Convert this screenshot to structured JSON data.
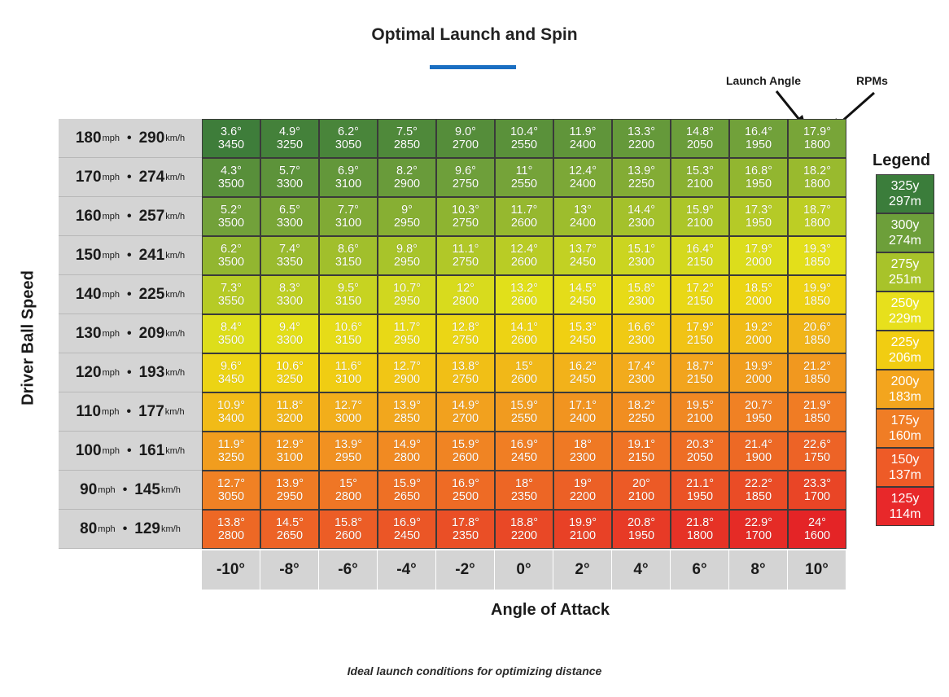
{
  "title": "Optimal Launch and Spin",
  "caption": "Ideal launch conditions for optimizing distance",
  "annotations": {
    "launch_angle": "Launch Angle",
    "rpms": "RPMs"
  },
  "legend": {
    "title": "Legend",
    "items": [
      {
        "yards": "325y",
        "meters": "297m",
        "color": "#3b7d3b"
      },
      {
        "yards": "300y",
        "meters": "274m",
        "color": "#6d9f3a"
      },
      {
        "yards": "275y",
        "meters": "251m",
        "color": "#a8c32a"
      },
      {
        "yards": "250y",
        "meters": "229m",
        "color": "#e7e01c"
      },
      {
        "yards": "225y",
        "meters": "206m",
        "color": "#f1cd12"
      },
      {
        "yards": "200y",
        "meters": "183m",
        "color": "#f3a51e"
      },
      {
        "yards": "175y",
        "meters": "160m",
        "color": "#f07d25"
      },
      {
        "yards": "150y",
        "meters": "137m",
        "color": "#ee5b27"
      },
      {
        "yards": "125y",
        "meters": "114m",
        "color": "#e8282a"
      }
    ]
  },
  "chart_data": {
    "type": "heatmap",
    "title": "Optimal Launch and Spin",
    "xlabel": "Angle of Attack",
    "ylabel": "Driver Ball Speed",
    "x": [
      "-10°",
      "-8°",
      "-6°",
      "-4°",
      "-2°",
      "0°",
      "2°",
      "4°",
      "6°",
      "8°",
      "10°"
    ],
    "rows": [
      {
        "mph": "180",
        "kmh": "290",
        "launch": [
          "3.6°",
          "4.9°",
          "6.2°",
          "7.5°",
          "9.0°",
          "10.4°",
          "11.9°",
          "13.3°",
          "14.8°",
          "16.4°",
          "17.9°"
        ],
        "rpm": [
          "3450",
          "3250",
          "3050",
          "2850",
          "2700",
          "2550",
          "2400",
          "2200",
          "2050",
          "1950",
          "1800"
        ]
      },
      {
        "mph": "170",
        "kmh": "274",
        "launch": [
          "4.3°",
          "5.7°",
          "6.9°",
          "8.2°",
          "9.6°",
          "11°",
          "12.4°",
          "13.9°",
          "15.3°",
          "16.8°",
          "18.2°"
        ],
        "rpm": [
          "3500",
          "3300",
          "3100",
          "2900",
          "2750",
          "2550",
          "2400",
          "2250",
          "2100",
          "1950",
          "1800"
        ]
      },
      {
        "mph": "160",
        "kmh": "257",
        "launch": [
          "5.2°",
          "6.5°",
          "7.7°",
          "9°",
          "10.3°",
          "11.7°",
          "13°",
          "14.4°",
          "15.9°",
          "17.3°",
          "18.7°"
        ],
        "rpm": [
          "3500",
          "3300",
          "3100",
          "2950",
          "2750",
          "2600",
          "2400",
          "2300",
          "2100",
          "1950",
          "1800"
        ]
      },
      {
        "mph": "150",
        "kmh": "241",
        "launch": [
          "6.2°",
          "7.4°",
          "8.6°",
          "9.8°",
          "11.1°",
          "12.4°",
          "13.7°",
          "15.1°",
          "16.4°",
          "17.9°",
          "19.3°"
        ],
        "rpm": [
          "3500",
          "3350",
          "3150",
          "2950",
          "2750",
          "2600",
          "2450",
          "2300",
          "2150",
          "2000",
          "1850"
        ]
      },
      {
        "mph": "140",
        "kmh": "225",
        "launch": [
          "7.3°",
          "8.3°",
          "9.5°",
          "10.7°",
          "12°",
          "13.2°",
          "14.5°",
          "15.8°",
          "17.2°",
          "18.5°",
          "19.9°"
        ],
        "rpm": [
          "3550",
          "3300",
          "3150",
          "2950",
          "2800",
          "2600",
          "2450",
          "2300",
          "2150",
          "2000",
          "1850"
        ]
      },
      {
        "mph": "130",
        "kmh": "209",
        "launch": [
          "8.4°",
          "9.4°",
          "10.6°",
          "11.7°",
          "12.8°",
          "14.1°",
          "15.3°",
          "16.6°",
          "17.9°",
          "19.2°",
          "20.6°"
        ],
        "rpm": [
          "3500",
          "3300",
          "3150",
          "2950",
          "2750",
          "2600",
          "2450",
          "2300",
          "2150",
          "2000",
          "1850"
        ]
      },
      {
        "mph": "120",
        "kmh": "193",
        "launch": [
          "9.6°",
          "10.6°",
          "11.6°",
          "12.7°",
          "13.8°",
          "15°",
          "16.2°",
          "17.4°",
          "18.7°",
          "19.9°",
          "21.2°"
        ],
        "rpm": [
          "3450",
          "3250",
          "3100",
          "2900",
          "2750",
          "2600",
          "2450",
          "2300",
          "2150",
          "2000",
          "1850"
        ]
      },
      {
        "mph": "110",
        "kmh": "177",
        "launch": [
          "10.9°",
          "11.8°",
          "12.7°",
          "13.9°",
          "14.9°",
          "15.9°",
          "17.1°",
          "18.2°",
          "19.5°",
          "20.7°",
          "21.9°"
        ],
        "rpm": [
          "3400",
          "3200",
          "3000",
          "2850",
          "2700",
          "2550",
          "2400",
          "2250",
          "2100",
          "1950",
          "1850"
        ]
      },
      {
        "mph": "100",
        "kmh": "161",
        "launch": [
          "11.9°",
          "12.9°",
          "13.9°",
          "14.9°",
          "15.9°",
          "16.9°",
          "18°",
          "19.1°",
          "20.3°",
          "21.4°",
          "22.6°"
        ],
        "rpm": [
          "3250",
          "3100",
          "2950",
          "2800",
          "2600",
          "2450",
          "2300",
          "2150",
          "2050",
          "1900",
          "1750"
        ]
      },
      {
        "mph": "90",
        "kmh": "145",
        "launch": [
          "12.7°",
          "13.9°",
          "15°",
          "15.9°",
          "16.9°",
          "18°",
          "19°",
          "20°",
          "21.1°",
          "22.2°",
          "23.3°"
        ],
        "rpm": [
          "3050",
          "2950",
          "2800",
          "2650",
          "2500",
          "2350",
          "2200",
          "2100",
          "1950",
          "1850",
          "1700"
        ]
      },
      {
        "mph": "80",
        "kmh": "129",
        "launch": [
          "13.8°",
          "14.5°",
          "15.8°",
          "16.9°",
          "17.8°",
          "18.8°",
          "19.9°",
          "20.8°",
          "21.8°",
          "22.9°",
          "24°"
        ],
        "rpm": [
          "2800",
          "2650",
          "2600",
          "2450",
          "2350",
          "2200",
          "2100",
          "1950",
          "1800",
          "1700",
          "1600"
        ]
      }
    ]
  }
}
